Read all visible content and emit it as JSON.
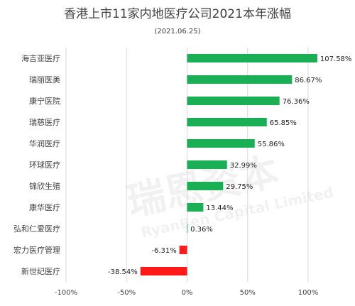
{
  "watermark": {
    "cn": "瑞恩资本",
    "en": "RyanBen Capital Limited"
  },
  "chart_data": {
    "type": "bar",
    "orientation": "horizontal",
    "title": "香港上市11家内地医疗公司2021本年涨幅",
    "subtitle": "(2021.06.25)",
    "categories": [
      "海吉亚医疗",
      "瑞丽医美",
      "康宁医院",
      "瑞慈医疗",
      "华润医疗",
      "环球医疗",
      "锦欣生殖",
      "康华医疗",
      "弘和仁爱医疗",
      "宏力医疗管理",
      "新世纪医疗"
    ],
    "values": [
      107.58,
      86.67,
      76.36,
      65.85,
      55.86,
      32.99,
      29.75,
      13.44,
      0.36,
      -6.31,
      -38.54
    ],
    "data_labels": [
      "107.58%",
      "86.67%",
      "76.36%",
      "65.85%",
      "55.86%",
      "32.99%",
      "29.75%",
      "13.44%",
      "0.36%",
      "-6.31%",
      "-38.54%"
    ],
    "xlim": [
      -100,
      100
    ],
    "xticks": [
      -100,
      -50,
      0,
      50,
      100
    ],
    "xtick_labels": [
      "-100%",
      "-50%",
      "0%",
      "50%",
      "100%"
    ],
    "grid": true,
    "legend": "none",
    "colors": {
      "positive": "#1aaf54",
      "negative": "#ff1a1a"
    }
  }
}
